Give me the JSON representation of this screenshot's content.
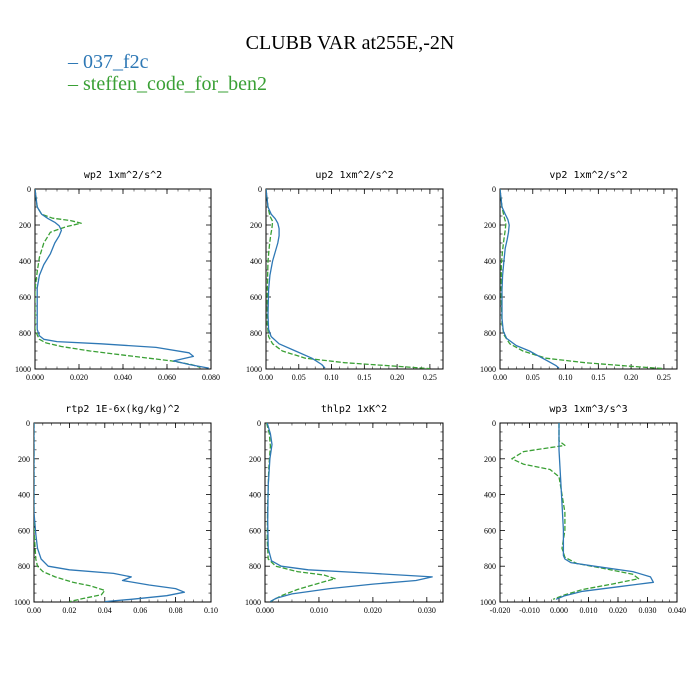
{
  "page": {
    "title": "CLUBB VAR at255E,-2N"
  },
  "colors": {
    "series_0": "#2E78B5",
    "series_1": "#3AA035"
  },
  "chart_data": [
    {
      "type": "line",
      "title": "wp2  1xm^2/s^2",
      "xlim": [
        0,
        0.08
      ],
      "ylim": [
        1000,
        0
      ],
      "xticks": [
        "0.000",
        "0.020",
        "0.040",
        "0.060",
        "0.080"
      ],
      "yticks": [
        "0",
        "200",
        "400",
        "600",
        "800",
        "1000"
      ],
      "series": [
        {
          "name": "037_f2c",
          "x": [
            0.0,
            0.001,
            0.003,
            0.006,
            0.009,
            0.011,
            0.012,
            0.011,
            0.009,
            0.007,
            0.004,
            0.002,
            0.001,
            0.001,
            0.001,
            0.001,
            0.002,
            0.004,
            0.01,
            0.03,
            0.055,
            0.07,
            0.072,
            0.063,
            0.07,
            0.079
          ],
          "y": [
            0,
            100,
            140,
            165,
            185,
            205,
            230,
            260,
            300,
            360,
            420,
            480,
            550,
            650,
            720,
            780,
            815,
            835,
            848,
            860,
            880,
            910,
            930,
            955,
            975,
            995
          ]
        },
        {
          "name": "steffen_code_for_ben2",
          "x": [
            0.0,
            0.001,
            0.003,
            0.008,
            0.016,
            0.021,
            0.014,
            0.007,
            0.004,
            0.002,
            0.001,
            0.0,
            0.0,
            0.0,
            0.001,
            0.002,
            0.005,
            0.012,
            0.025,
            0.045,
            0.062,
            0.071,
            0.075
          ],
          "y": [
            0,
            100,
            140,
            162,
            175,
            190,
            210,
            240,
            300,
            380,
            460,
            560,
            700,
            780,
            810,
            835,
            855,
            875,
            900,
            930,
            955,
            975,
            990
          ]
        }
      ]
    },
    {
      "type": "line",
      "title": "up2  1xm^2/s^2",
      "xlim": [
        0,
        0.27
      ],
      "ylim": [
        1000,
        0
      ],
      "xticks": [
        "0.00",
        "0.05",
        "0.10",
        "0.15",
        "0.20",
        "0.25"
      ],
      "yticks": [
        "0",
        "200",
        "400",
        "600",
        "800",
        "1000"
      ],
      "series": [
        {
          "name": "037_f2c",
          "x": [
            0.0,
            0.003,
            0.008,
            0.014,
            0.018,
            0.02,
            0.02,
            0.018,
            0.014,
            0.01,
            0.006,
            0.004,
            0.003,
            0.004,
            0.008,
            0.02,
            0.045,
            0.07,
            0.085,
            0.09
          ],
          "y": [
            0,
            100,
            140,
            165,
            190,
            220,
            260,
            300,
            350,
            400,
            480,
            560,
            700,
            780,
            820,
            860,
            900,
            940,
            975,
            995
          ]
        },
        {
          "name": "steffen_code_for_ben2",
          "x": [
            0.0,
            0.003,
            0.006,
            0.01,
            0.009,
            0.007,
            0.005,
            0.003,
            0.002,
            0.002,
            0.004,
            0.01,
            0.025,
            0.06,
            0.12,
            0.2,
            0.25
          ],
          "y": [
            0,
            100,
            150,
            180,
            220,
            260,
            320,
            400,
            560,
            750,
            820,
            860,
            900,
            940,
            965,
            985,
            998
          ]
        }
      ]
    },
    {
      "type": "line",
      "title": "vp2  1xm^2/s^2",
      "xlim": [
        0,
        0.27
      ],
      "ylim": [
        1000,
        0
      ],
      "xticks": [
        "0.00",
        "0.05",
        "0.10",
        "0.15",
        "0.20",
        "0.25"
      ],
      "yticks": [
        "0",
        "200",
        "400",
        "600",
        "800",
        "1000"
      ],
      "series": [
        {
          "name": "037_f2c",
          "x": [
            0.0,
            0.003,
            0.008,
            0.012,
            0.014,
            0.013,
            0.011,
            0.008,
            0.006,
            0.004,
            0.003,
            0.003,
            0.005,
            0.01,
            0.025,
            0.045,
            0.06,
            0.075,
            0.085,
            0.09
          ],
          "y": [
            0,
            100,
            140,
            170,
            200,
            240,
            280,
            330,
            400,
            480,
            560,
            720,
            790,
            830,
            870,
            900,
            930,
            960,
            980,
            995
          ]
        },
        {
          "name": "steffen_code_for_ben2",
          "x": [
            0.0,
            0.003,
            0.006,
            0.009,
            0.008,
            0.006,
            0.004,
            0.002,
            0.002,
            0.003,
            0.006,
            0.015,
            0.035,
            0.07,
            0.13,
            0.2,
            0.25
          ],
          "y": [
            0,
            100,
            150,
            190,
            230,
            280,
            340,
            420,
            600,
            750,
            810,
            860,
            900,
            940,
            965,
            985,
            998
          ]
        }
      ]
    },
    {
      "type": "line",
      "title": "rtp2  1E-6x(kg/kg)^2",
      "xlim": [
        0,
        0.1
      ],
      "ylim": [
        1000,
        0
      ],
      "xticks": [
        "0.00",
        "0.02",
        "0.04",
        "0.06",
        "0.08",
        "0.10"
      ],
      "yticks": [
        "0",
        "200",
        "400",
        "600",
        "800",
        "1000"
      ],
      "series": [
        {
          "name": "037_f2c",
          "x": [
            0.0,
            0.0,
            0.0,
            0.001,
            0.002,
            0.004,
            0.008,
            0.02,
            0.045,
            0.055,
            0.05,
            0.065,
            0.08,
            0.085,
            0.075,
            0.055,
            0.04
          ],
          "y": [
            0,
            300,
            500,
            620,
            700,
            760,
            800,
            820,
            840,
            860,
            880,
            905,
            925,
            945,
            965,
            985,
            998
          ]
        },
        {
          "name": "steffen_code_for_ben2",
          "x": [
            0.0,
            0.0,
            0.0,
            0.001,
            0.002,
            0.005,
            0.012,
            0.022,
            0.032,
            0.04,
            0.038,
            0.028,
            0.02
          ],
          "y": [
            0,
            300,
            600,
            760,
            800,
            830,
            860,
            890,
            910,
            935,
            960,
            980,
            998
          ]
        }
      ]
    },
    {
      "type": "line",
      "title": "thlp2  1xK^2",
      "xlim": [
        0,
        0.033
      ],
      "ylim": [
        1000,
        0
      ],
      "xticks": [
        "0.000",
        "0.010",
        "0.020",
        "0.030"
      ],
      "yticks": [
        "0",
        "200",
        "400",
        "600",
        "800",
        "1000"
      ],
      "series": [
        {
          "name": "037_f2c",
          "x": [
            0.0004,
            0.001,
            0.0013,
            0.0009,
            0.0006,
            0.0005,
            0.0006,
            0.0012,
            0.003,
            0.008,
            0.02,
            0.031,
            0.028,
            0.02,
            0.012,
            0.005,
            0.002,
            0.001
          ],
          "y": [
            0,
            60,
            120,
            200,
            350,
            550,
            700,
            770,
            800,
            820,
            840,
            860,
            880,
            900,
            925,
            955,
            980,
            998
          ]
        },
        {
          "name": "steffen_code_for_ben2",
          "x": [
            0.0003,
            0.0008,
            0.001,
            0.0007,
            0.0005,
            0.0004,
            0.0006,
            0.002,
            0.006,
            0.011,
            0.013,
            0.01,
            0.006,
            0.003,
            0.001
          ],
          "y": [
            0,
            60,
            130,
            250,
            450,
            650,
            760,
            800,
            830,
            850,
            870,
            895,
            930,
            965,
            998
          ]
        }
      ]
    },
    {
      "type": "line",
      "title": "wp3  1xm^3/s^3",
      "xlim": [
        -0.02,
        0.04
      ],
      "ylim": [
        1000,
        0
      ],
      "xticks": [
        "-0.020",
        "-0.010",
        "0.000",
        "0.010",
        "0.020",
        "0.030",
        "0.040"
      ],
      "yticks": [
        "0",
        "200",
        "400",
        "600",
        "800",
        "1000"
      ],
      "series": [
        {
          "name": "037_f2c",
          "x": [
            0.0,
            0.0,
            0.0005,
            0.001,
            0.0015,
            0.0015,
            0.0015,
            0.002,
            0.004,
            0.012,
            0.025,
            0.031,
            0.032,
            0.02,
            0.008,
            0.002,
            -0.001
          ],
          "y": [
            0,
            150,
            300,
            450,
            600,
            700,
            740,
            760,
            780,
            800,
            830,
            860,
            890,
            915,
            940,
            965,
            985
          ]
        },
        {
          "name": "steffen_code_for_ben2",
          "x": [
            0.0,
            0.0,
            0.002,
            -0.012,
            -0.016,
            -0.012,
            -0.003,
            0.0,
            0.001,
            0.002,
            0.002,
            0.001,
            0.002,
            0.006,
            0.016,
            0.025,
            0.027,
            0.018,
            0.008,
            0.002,
            -0.002
          ],
          "y": [
            0,
            100,
            125,
            160,
            200,
            230,
            260,
            300,
            400,
            500,
            600,
            700,
            750,
            785,
            815,
            845,
            870,
            900,
            930,
            960,
            985
          ]
        }
      ]
    }
  ]
}
